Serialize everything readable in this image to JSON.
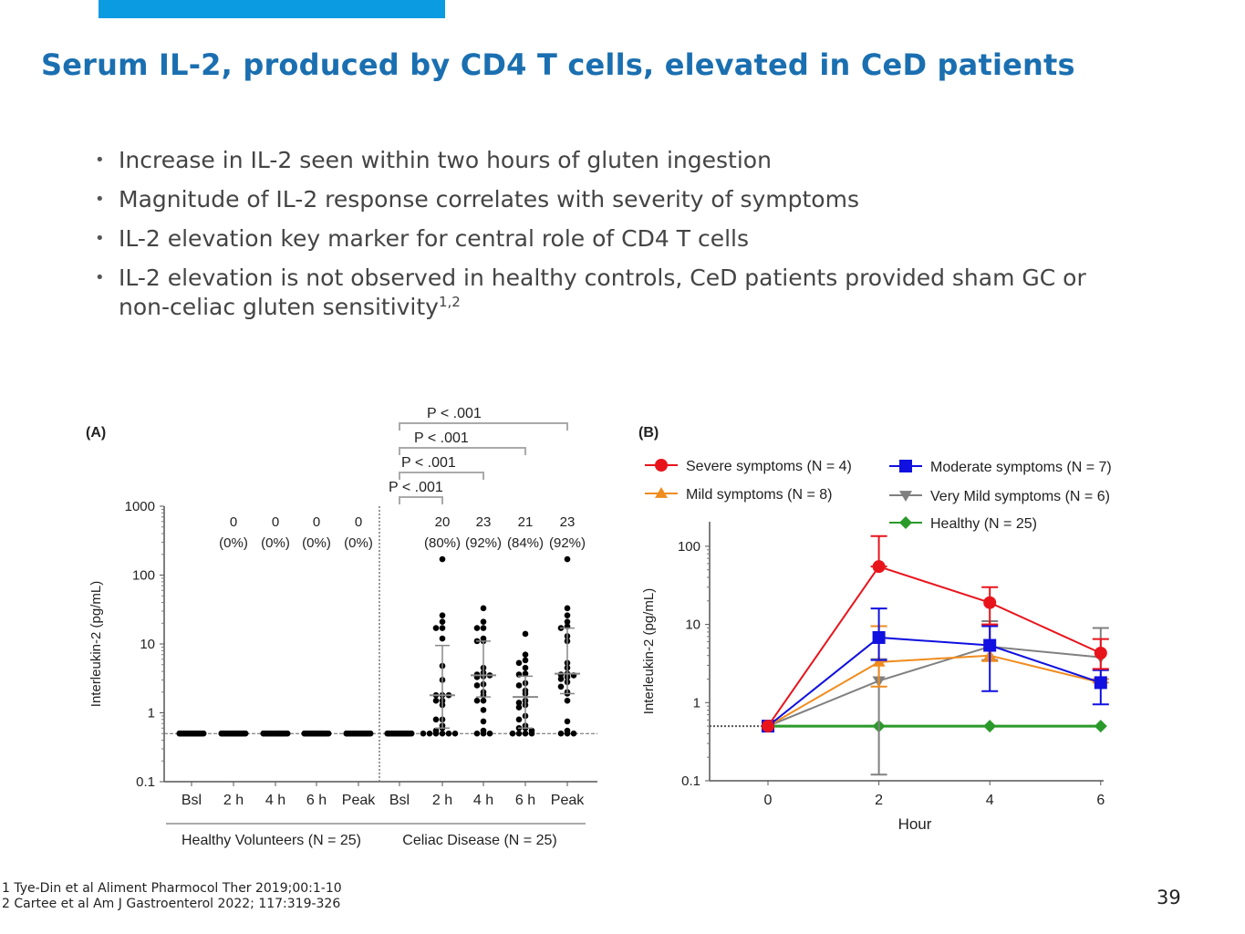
{
  "slide": {
    "title": "Serum IL-2, produced by CD4 T cells, elevated in CeD patients",
    "bullets": [
      {
        "text": "Increase in IL-2 seen within two hours of gluten ingestion"
      },
      {
        "text": "Magnitude of IL-2 response correlates with severity of symptoms"
      },
      {
        "text": "IL-2 elevation key marker for central role of CD4 T cells"
      },
      {
        "text": "IL-2 elevation is not observed in healthy controls, CeD patients provided sham GC or non-celiac gluten sensitivity",
        "sup": "1,2"
      }
    ],
    "footnotes": [
      "1 Tye-Din et al Aliment Pharmocol Ther 2019;00:1-10",
      "2 Cartee et al Am J Gastroenterol 2022; 117:319-326"
    ],
    "page_number": "39",
    "accent_color": "#0a9be0",
    "title_color": "#1a6fb0"
  },
  "chart_data": [
    {
      "type": "scatter",
      "panel_label": "(A)",
      "ylabel": "Interleukin-2 (pg/mL)",
      "yscale": "log",
      "ylim": [
        0.1,
        1000
      ],
      "yticks": [
        "0.1",
        "1",
        "10",
        "100",
        "1000"
      ],
      "categories": [
        "Bsl",
        "2 h",
        "4 h",
        "6 h",
        "Peak",
        "Bsl",
        "2 h",
        "4 h",
        "6 h",
        "Peak"
      ],
      "groups": [
        {
          "label": "Healthy Volunteers (N = 25)",
          "categories": [
            0,
            1,
            2,
            3,
            4
          ]
        },
        {
          "label": "Celiac Disease (N = 25)",
          "categories": [
            5,
            6,
            7,
            8,
            9
          ]
        }
      ],
      "lloq": 0.5,
      "counts": [
        "",
        "0",
        "0",
        "0",
        "0",
        "",
        "20",
        "23",
        "21",
        "23"
      ],
      "percents": [
        "",
        "(0%)",
        "(0%)",
        "(0%)",
        "(0%)",
        "",
        "(80%)",
        "(92%)",
        "(84%)",
        "(92%)"
      ],
      "comparisons": [
        {
          "from": 5,
          "to": 6,
          "label": "P < .001"
        },
        {
          "from": 5,
          "to": 7,
          "label": "P < .001"
        },
        {
          "from": 5,
          "to": 8,
          "label": "P < .001"
        },
        {
          "from": 5,
          "to": 9,
          "label": "P < .001"
        }
      ],
      "points": [
        [
          0.5,
          0.5,
          0.5,
          0.5,
          0.5,
          0.5,
          0.5,
          0.5,
          0.5,
          0.5,
          0.5,
          0.5,
          0.5,
          0.5,
          0.5,
          0.5,
          0.5,
          0.5,
          0.5,
          0.5,
          0.5,
          0.5,
          0.5,
          0.5,
          0.5
        ],
        [
          0.5,
          0.5,
          0.5,
          0.5,
          0.5,
          0.5,
          0.5,
          0.5,
          0.5,
          0.5,
          0.5,
          0.5,
          0.5,
          0.5,
          0.5,
          0.5,
          0.5,
          0.5,
          0.5,
          0.5,
          0.5,
          0.5,
          0.5,
          0.5,
          0.5
        ],
        [
          0.5,
          0.5,
          0.5,
          0.5,
          0.5,
          0.5,
          0.5,
          0.5,
          0.5,
          0.5,
          0.5,
          0.5,
          0.5,
          0.5,
          0.5,
          0.5,
          0.5,
          0.5,
          0.5,
          0.5,
          0.5,
          0.5,
          0.5,
          0.5,
          0.5
        ],
        [
          0.5,
          0.5,
          0.5,
          0.5,
          0.5,
          0.5,
          0.5,
          0.5,
          0.5,
          0.5,
          0.5,
          0.5,
          0.5,
          0.5,
          0.5,
          0.5,
          0.5,
          0.5,
          0.5,
          0.5,
          0.5,
          0.5,
          0.5,
          0.5,
          0.5
        ],
        [
          0.5,
          0.5,
          0.5,
          0.5,
          0.5,
          0.5,
          0.5,
          0.5,
          0.5,
          0.5,
          0.5,
          0.5,
          0.5,
          0.5,
          0.5,
          0.5,
          0.5,
          0.5,
          0.5,
          0.5,
          0.5,
          0.5,
          0.5,
          0.5,
          0.5
        ],
        [
          0.5,
          0.5,
          0.5,
          0.5,
          0.5,
          0.5,
          0.5,
          0.5,
          0.5,
          0.5,
          0.5,
          0.5,
          0.5,
          0.5,
          0.5,
          0.5,
          0.5,
          0.5,
          0.5,
          0.5,
          0.5,
          0.5,
          0.5,
          0.5,
          0.5
        ],
        [
          170,
          26,
          21,
          17,
          17,
          12,
          4.8,
          3,
          1.8,
          1.8,
          1.8,
          1.5,
          1.5,
          1.3,
          0.8,
          0.8,
          0.65,
          0.6,
          0.55,
          0.5,
          0.5,
          0.5,
          0.5,
          0.5,
          0.5
        ],
        [
          33,
          21,
          17,
          17,
          12,
          11,
          11,
          4.5,
          3.8,
          3.6,
          3.5,
          3.4,
          3.3,
          2.6,
          2.5,
          2,
          1.8,
          1.5,
          1.5,
          1.1,
          0.75,
          0.55,
          0.5,
          0.5,
          0.5
        ],
        [
          14,
          7,
          5.8,
          5.3,
          4.5,
          3.7,
          3.6,
          2.7,
          2.5,
          2.1,
          1.9,
          1.5,
          1.4,
          1.3,
          1.2,
          0.9,
          0.8,
          0.65,
          0.6,
          0.6,
          0.55,
          0.5,
          0.5,
          0.5,
          0.5
        ],
        [
          170,
          33,
          26,
          21,
          18,
          17,
          13,
          11,
          5.3,
          4.5,
          3.7,
          3.6,
          3.5,
          3.3,
          3.1,
          2.8,
          2.4,
          2,
          1.9,
          1.5,
          0.75,
          0.55,
          0.5,
          0.5,
          0.5
        ]
      ],
      "summary": [
        null,
        null,
        null,
        null,
        null,
        null,
        {
          "median": 1.8,
          "q1": 0.6,
          "q3": 9.5
        },
        {
          "median": 3.5,
          "q1": 1.7,
          "q3": 11
        },
        {
          "median": 1.7,
          "q1": 0.6,
          "q3": 3.4
        },
        {
          "median": 3.7,
          "q1": 1.9,
          "q3": 17
        }
      ]
    },
    {
      "type": "line",
      "panel_label": "(B)",
      "xlabel": "Hour",
      "ylabel": "Interleukin-2 (pg/mL)",
      "yscale": "log",
      "ylim": [
        0.1,
        200
      ],
      "xlim": [
        -1,
        6
      ],
      "xticks": [
        "0",
        "2",
        "4",
        "6"
      ],
      "yticks": [
        "0.1",
        "1",
        "10",
        "100"
      ],
      "x": [
        0,
        2,
        4,
        6
      ],
      "lloq": 0.5,
      "legend_position": "top",
      "series": [
        {
          "name": "Severe symptoms (N = 4)",
          "color": "#e8141c",
          "marker": "circle",
          "values": [
            0.5,
            55,
            19,
            4.3
          ],
          "err_low": [
            0.5,
            55,
            10,
            2.7
          ],
          "err_high": [
            0.5,
            135,
            30,
            6.5
          ]
        },
        {
          "name": "Moderate symptoms (N = 7)",
          "color": "#1010e0",
          "marker": "square",
          "values": [
            0.5,
            6.8,
            5.4,
            1.8
          ],
          "err_low": [
            0.5,
            3.5,
            1.4,
            0.95
          ],
          "err_high": [
            0.5,
            16,
            9.5,
            2.6
          ]
        },
        {
          "name": "Mild symptoms (N = 8)",
          "color": "#f08c1e",
          "marker": "triangle-up",
          "values": [
            0.5,
            3.3,
            4.0,
            1.8
          ],
          "err_low": [
            0.5,
            1.6,
            3.4,
            1.8
          ],
          "err_high": [
            0.5,
            9.5,
            10,
            2.0
          ]
        },
        {
          "name": "Very Mild symptoms (N = 6)",
          "color": "#808080",
          "marker": "triangle-down",
          "values": [
            0.5,
            1.9,
            5.2,
            3.8
          ],
          "err_low": [
            0.5,
            0.12,
            3.5,
            2.0
          ],
          "err_high": [
            0.5,
            3.6,
            11,
            9
          ]
        },
        {
          "name": "Healthy (N = 25)",
          "color": "#2a9a2a",
          "marker": "diamond",
          "values": [
            0.5,
            0.5,
            0.5,
            0.5
          ],
          "err_low": [
            0.5,
            0.5,
            0.5,
            0.5
          ],
          "err_high": [
            0.5,
            0.5,
            0.5,
            0.5
          ]
        }
      ]
    }
  ]
}
